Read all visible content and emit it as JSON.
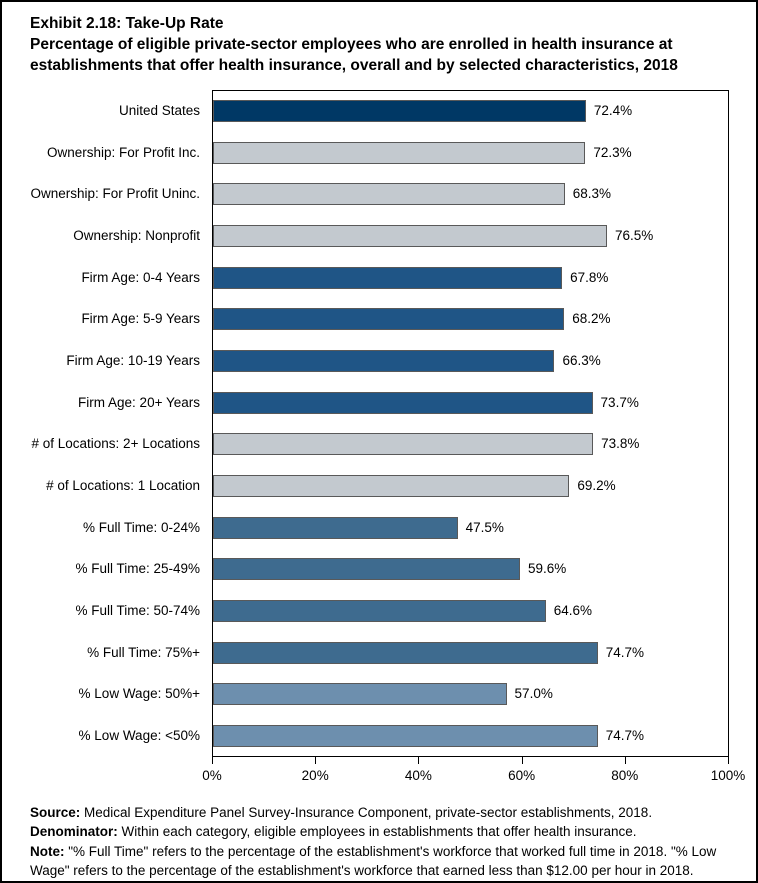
{
  "page": {
    "title_line1": "Exhibit 2.18: Take-Up Rate",
    "title_line2": "Percentage of eligible private-sector employees who are enrolled in health insurance at establishments that offer health insurance, overall and by selected characteristics, 2018"
  },
  "chart_data": {
    "type": "bar",
    "orientation": "horizontal",
    "title": "Exhibit 2.18: Take-Up Rate",
    "subtitle": "Percentage of eligible private-sector employees who are enrolled in health insurance at establishments that offer health insurance, overall and by selected characteristics, 2018",
    "categories": [
      "United States",
      "Ownership: For Profit Inc.",
      "Ownership: For Profit Uninc.",
      "Ownership: Nonprofit",
      "Firm Age: 0-4 Years",
      "Firm Age: 5-9 Years",
      "Firm Age: 10-19 Years",
      "Firm Age: 20+ Years",
      "# of Locations: 2+ Locations",
      "# of Locations: 1 Location",
      "% Full Time: 0-24%",
      "% Full Time: 25-49%",
      "% Full Time: 50-74%",
      "% Full Time: 75%+",
      "% Low Wage: 50%+",
      "% Low Wage: <50%"
    ],
    "values": [
      72.4,
      72.3,
      68.3,
      76.5,
      67.8,
      68.2,
      66.3,
      73.7,
      73.8,
      69.2,
      47.5,
      59.6,
      64.6,
      74.7,
      57.0,
      74.7
    ],
    "value_labels": [
      "72.4%",
      "72.3%",
      "68.3%",
      "76.5%",
      "67.8%",
      "68.2%",
      "66.3%",
      "73.7%",
      "73.8%",
      "69.2%",
      "47.5%",
      "59.6%",
      "64.6%",
      "74.7%",
      "57.0%",
      "74.7%"
    ],
    "bar_colors": [
      "#003865",
      "#C3C9CF",
      "#C3C9CF",
      "#C3C9CF",
      "#1F5586",
      "#1F5586",
      "#1F5586",
      "#1F5586",
      "#C3C9CF",
      "#C3C9CF",
      "#3E6B8F",
      "#3E6B8F",
      "#3E6B8F",
      "#3E6B8F",
      "#6D8FAE",
      "#6D8FAE"
    ],
    "bar_border_color": "#595959",
    "xlabel": "",
    "ylabel": "",
    "xlim": [
      0,
      100
    ],
    "x_tick_values": [
      0,
      20,
      40,
      60,
      80,
      100
    ],
    "x_ticks": [
      "0%",
      "20%",
      "40%",
      "60%",
      "80%",
      "100%"
    ],
    "grid": false,
    "legend_position": "none"
  },
  "footnotes": {
    "source_label": "Source:",
    "source_text": " Medical Expenditure Panel Survey-Insurance Component, private-sector establishments, 2018.",
    "denominator_label": "Denominator:",
    "denominator_text": " Within each category, eligible employees in establishments that offer health insurance.",
    "note_label": "Note:",
    "note_text": " \"% Full Time\" refers to the percentage of the establishment's workforce that worked full time in 2018. \"% Low Wage\" refers to the percentage of the establishment's workforce that earned less than $12.00 per hour in 2018."
  }
}
